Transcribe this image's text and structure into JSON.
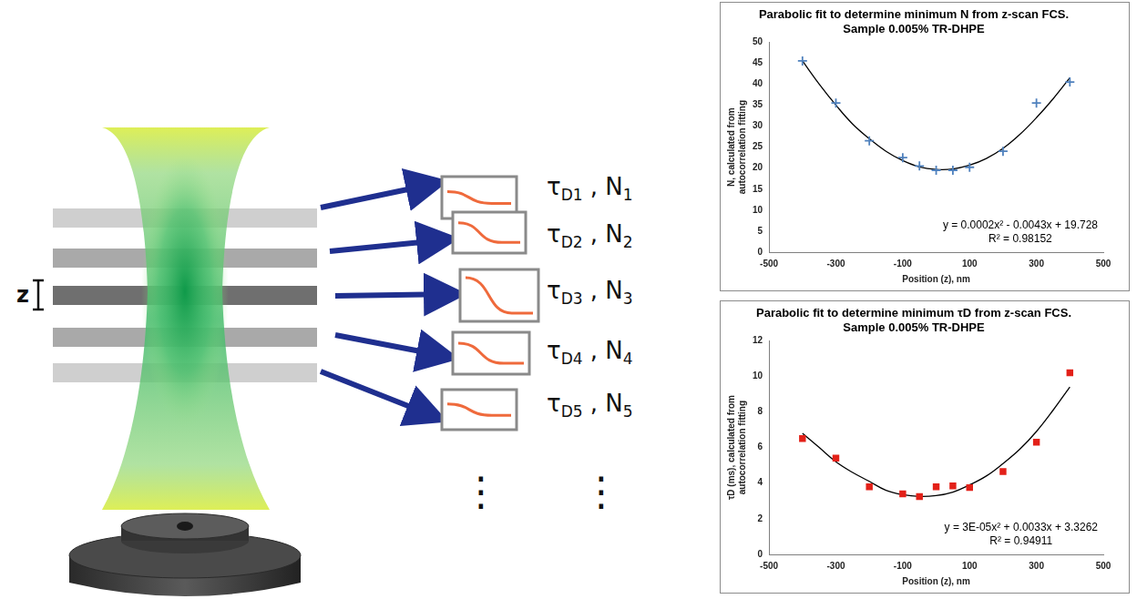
{
  "diagram": {
    "scale_label": "z",
    "separator": ",",
    "continuation": "⋮",
    "outputs": [
      {
        "tau": "τ",
        "tau_subscript": "D1",
        "n": "N",
        "n_subscript": "1"
      },
      {
        "tau": "τ",
        "tau_subscript": "D2",
        "n": "N",
        "n_subscript": "2"
      },
      {
        "tau": "τ",
        "tau_subscript": "D3",
        "n": "N",
        "n_subscript": "3"
      },
      {
        "tau": "τ",
        "tau_subscript": "D4",
        "n": "N",
        "n_subscript": "4"
      },
      {
        "tau": "τ",
        "tau_subscript": "D5",
        "n": "N",
        "n_subscript": "5"
      }
    ]
  },
  "chart_data": [
    {
      "type": "scatter",
      "title": "Parabolic fit to determine minimum N from z-scan FCS. Sample 0.005% TR-DHPE",
      "x_label": "Position (z), nm",
      "y_label": "N, calculated from autocorrelation fitting",
      "xlim": [
        -500,
        500
      ],
      "xticks": [
        -500,
        -300,
        -100,
        100,
        300,
        500
      ],
      "ylim": [
        0,
        50
      ],
      "yticks": [
        0,
        5,
        10,
        15,
        20,
        25,
        30,
        35,
        40,
        45,
        50
      ],
      "grid": false,
      "series": [
        {
          "type": "line",
          "color": "#000000",
          "line_style": "solid",
          "x": [
            -400,
            -350,
            -300,
            -250,
            -200,
            -150,
            -100,
            -50,
            0,
            50,
            100,
            150,
            200,
            250,
            300,
            350,
            400
          ],
          "values": [
            45.5,
            40,
            35,
            30.5,
            27,
            24,
            21.8,
            20.3,
            19.7,
            19.8,
            20.7,
            22.3,
            24.7,
            28,
            32,
            36.5,
            41.5
          ],
          "equation": "y = 0.0002x² - 0.0043x + 19.728",
          "r_squared": "R² = 0.98152"
        },
        {
          "type": "scatter",
          "color": "#4f81bd",
          "marker": "cross",
          "x": [
            -400,
            -300,
            -200,
            -100,
            -50,
            0,
            50,
            100,
            200,
            300,
            400
          ],
          "values": [
            45.5,
            35.5,
            26.5,
            22.5,
            20.5,
            19.5,
            19.5,
            20.2,
            24,
            35.5,
            40.5
          ]
        }
      ]
    },
    {
      "type": "scatter",
      "title": "Parabolic fit to determine minimum τD from z-scan FCS. Sample 0.005% TR-DHPE",
      "x_label": "Position (z), nm",
      "y_label": "τD (ms), calculated from autocorrelation fitting",
      "xlim": [
        -500,
        500
      ],
      "xticks": [
        -500,
        -300,
        -100,
        100,
        300,
        500
      ],
      "ylim": [
        0,
        12
      ],
      "yticks": [
        0,
        2,
        4,
        6,
        8,
        10,
        12
      ],
      "grid": false,
      "series": [
        {
          "type": "line",
          "color": "#000000",
          "line_style": "solid",
          "x": [
            -400,
            -350,
            -300,
            -250,
            -200,
            -150,
            -100,
            -50,
            0,
            50,
            100,
            150,
            200,
            250,
            300,
            350,
            400
          ],
          "values": [
            6.8,
            6.0,
            5.2,
            4.6,
            4.1,
            3.6,
            3.35,
            3.25,
            3.3,
            3.5,
            3.9,
            4.4,
            5.1,
            5.9,
            6.9,
            8.1,
            9.4
          ],
          "equation": "y = 3E-05x² + 0.0033x + 3.3262",
          "r_squared": "R² = 0.94911"
        },
        {
          "type": "scatter",
          "color": "#e32119",
          "marker": "square",
          "x": [
            -400,
            -300,
            -200,
            -100,
            -50,
            0,
            50,
            100,
            200,
            300,
            400
          ],
          "values": [
            6.5,
            5.4,
            3.8,
            3.4,
            3.25,
            3.8,
            3.85,
            3.75,
            4.65,
            6.3,
            10.2
          ]
        }
      ]
    }
  ]
}
